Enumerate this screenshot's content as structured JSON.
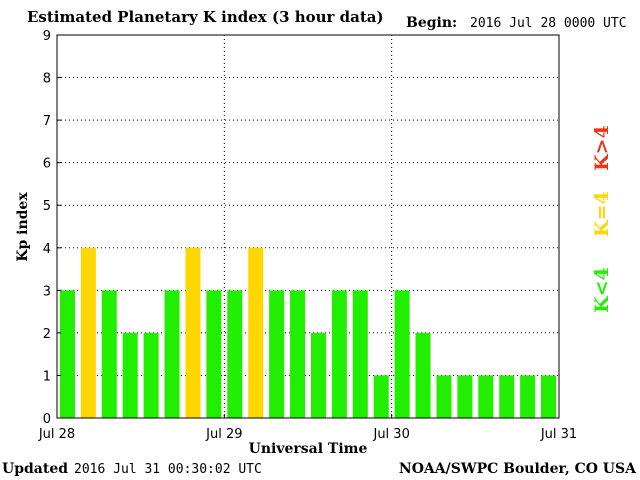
{
  "header": {
    "title": "Estimated Planetary K index (3 hour data)",
    "begin_label": "Begin:",
    "begin_value": "2016 Jul 28 0000 UTC"
  },
  "footer": {
    "updated_label": "Updated",
    "updated_value": "2016 Jul 31 00:30:02 UTC",
    "source": "NOAA/SWPC Boulder, CO USA"
  },
  "colors": {
    "low": "#22ee00",
    "storm_threshold": "#ffd700",
    "storm": "#ee3311"
  },
  "chart_data": {
    "type": "bar",
    "title": "Estimated Planetary K index (3 hour data)",
    "xlabel": "Universal Time",
    "ylabel": "Kp index",
    "ylim": [
      0,
      9
    ],
    "yticks": [
      "0",
      "1",
      "2",
      "3",
      "4",
      "5",
      "6",
      "7",
      "8",
      "9"
    ],
    "xticks": [
      "Jul 28",
      "Jul 29",
      "Jul 30",
      "Jul 31"
    ],
    "grid": true,
    "legend": [
      "K<4",
      "K=4",
      "K>4"
    ],
    "values": [
      3,
      4,
      3,
      2,
      2,
      3,
      4,
      3,
      3,
      4,
      3,
      3,
      2,
      3,
      3,
      1,
      3,
      2,
      1,
      1,
      1,
      1,
      1,
      1
    ]
  }
}
